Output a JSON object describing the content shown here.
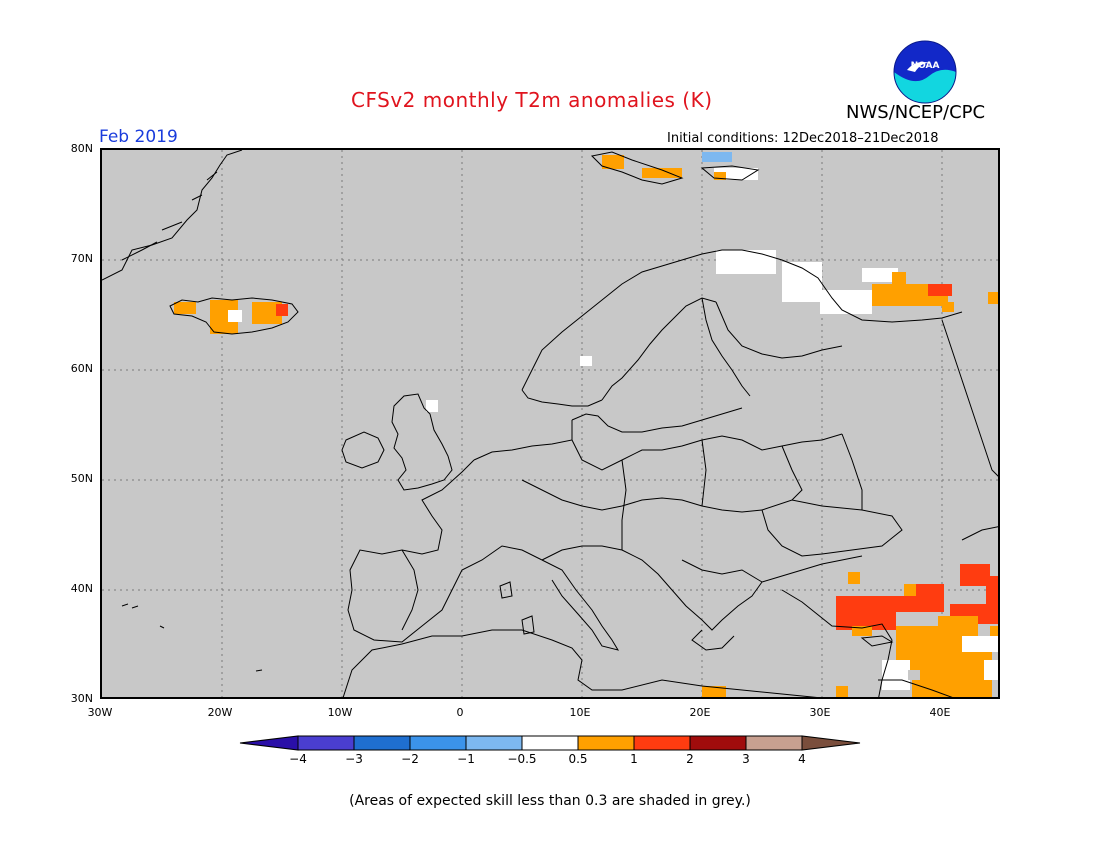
{
  "title": "CFSv2 monthly T2m anomalies (K)",
  "organization": "NWS/NCEP/CPC",
  "logo_text": "NOAA",
  "month": "Feb 2019",
  "initial_conditions": "Initial conditions: 12Dec2018–21Dec2018",
  "lat_labels": [
    "80N",
    "70N",
    "60N",
    "50N",
    "40N",
    "30N"
  ],
  "lon_labels": [
    "30W",
    "20W",
    "10W",
    "0",
    "10E",
    "20E",
    "30E",
    "40E"
  ],
  "legend_values": [
    "−4",
    "−3",
    "−2",
    "−1",
    "−0.5",
    "0.5",
    "1",
    "2",
    "3",
    "4"
  ],
  "legend_colors": [
    "#2a0fa8",
    "#4a3ed0",
    "#1f6fd0",
    "#3b93ea",
    "#7db8f0",
    "#ffffff",
    "#ffa000",
    "#ff3c10",
    "#a00c0c",
    "#c8a090",
    "#7a4e3c"
  ],
  "footnote": "(Areas of expected skill less than 0.3 are shaded in grey.)",
  "colors": {
    "title": "#e0141e",
    "month": "#1a3cdc",
    "no_skill": "#c8c8c8"
  }
}
